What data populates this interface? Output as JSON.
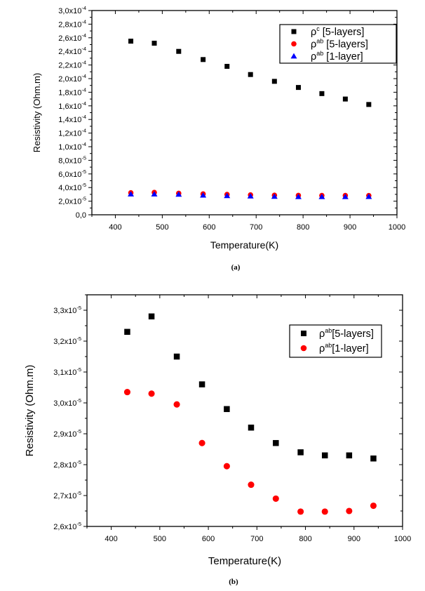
{
  "chart_data": [
    {
      "id": "a",
      "type": "scatter",
      "caption": "(a)",
      "xlabel": "Temperature(K)",
      "ylabel": "Resistivity (Ohm.m)",
      "xlim": [
        350,
        1000
      ],
      "ylim": [
        0,
        0.0003
      ],
      "grid": false,
      "x_ticks": [
        400,
        500,
        600,
        700,
        800,
        900,
        1000
      ],
      "x_tick_labels": [
        "400",
        "500",
        "600",
        "700",
        "800",
        "900",
        "1000"
      ],
      "y_ticks": [
        0,
        2e-05,
        4e-05,
        6e-05,
        8e-05,
        0.0001,
        0.00012,
        0.00014,
        0.00016,
        0.00018,
        0.0002,
        0.00022,
        0.00024,
        0.00026,
        0.00028,
        0.0003
      ],
      "y_tick_labels": [
        {
          "m": "0,0",
          "e": ""
        },
        {
          "m": "2,0x10",
          "e": "-5"
        },
        {
          "m": "4,0x10",
          "e": "-5"
        },
        {
          "m": "6,0x10",
          "e": "-5"
        },
        {
          "m": "8,0x10",
          "e": "-5"
        },
        {
          "m": "1,0x10",
          "e": "-4"
        },
        {
          "m": "1,2x10",
          "e": "-4"
        },
        {
          "m": "1,4x10",
          "e": "-4"
        },
        {
          "m": "1,6x10",
          "e": "-4"
        },
        {
          "m": "1,8x10",
          "e": "-4"
        },
        {
          "m": "2,0x10",
          "e": "-4"
        },
        {
          "m": "2,2x10",
          "e": "-4"
        },
        {
          "m": "2,4x10",
          "e": "-4"
        },
        {
          "m": "2,6x10",
          "e": "-4"
        },
        {
          "m": "2,8x10",
          "e": "-4"
        },
        {
          "m": "3,0x10",
          "e": "-4"
        }
      ],
      "legend_position": "top-right",
      "x": [
        433,
        483,
        535,
        587,
        638,
        688,
        739,
        790,
        840,
        890,
        940
      ],
      "series": [
        {
          "name": "ρ^c [5-layers]",
          "base": "ρ",
          "sup": "c",
          "rest": " [5-layers]",
          "marker": "square",
          "color": "#000000",
          "values": [
            0.000255,
            0.000252,
            0.00024,
            0.000228,
            0.000218,
            0.000206,
            0.000196,
            0.000187,
            0.000178,
            0.00017,
            0.000162
          ]
        },
        {
          "name": "ρ^ab [5-layers]",
          "base": "ρ",
          "sup": "ab",
          "rest": " [5-layers]",
          "marker": "circle",
          "color": "#ff0000",
          "values": [
            3.23e-05,
            3.28e-05,
            3.15e-05,
            3.06e-05,
            2.98e-05,
            2.92e-05,
            2.87e-05,
            2.84e-05,
            2.83e-05,
            2.83e-05,
            2.82e-05
          ]
        },
        {
          "name": "ρ^ab [1-layer]",
          "base": "ρ",
          "sup": "ab",
          "rest": " [1-layer]",
          "marker": "triangle",
          "color": "#0000ff",
          "values": [
            3.035e-05,
            3.03e-05,
            2.995e-05,
            2.87e-05,
            2.795e-05,
            2.735e-05,
            2.69e-05,
            2.648e-05,
            2.648e-05,
            2.65e-05,
            2.667e-05
          ]
        }
      ]
    },
    {
      "id": "b",
      "type": "scatter",
      "caption": "(b)",
      "xlabel": "Temperature(K)",
      "ylabel": "Resistivity (Ohm.m)",
      "xlim": [
        350,
        1000
      ],
      "ylim": [
        2.6e-05,
        3.35e-05
      ],
      "grid": false,
      "x_ticks": [
        400,
        500,
        600,
        700,
        800,
        900,
        1000
      ],
      "x_tick_labels": [
        "400",
        "500",
        "600",
        "700",
        "800",
        "900",
        "1000"
      ],
      "y_ticks": [
        2.6e-05,
        2.7e-05,
        2.8e-05,
        2.9e-05,
        3e-05,
        3.1e-05,
        3.2e-05,
        3.3e-05
      ],
      "y_tick_labels": [
        {
          "m": "2,6x10",
          "e": "-5"
        },
        {
          "m": "2,7x10",
          "e": "-5"
        },
        {
          "m": "2,8x10",
          "e": "-5"
        },
        {
          "m": "2,9x10",
          "e": "-5"
        },
        {
          "m": "3,0x10",
          "e": "-5"
        },
        {
          "m": "3,1x10",
          "e": "-5"
        },
        {
          "m": "3,2x10",
          "e": "-5"
        },
        {
          "m": "3,3x10",
          "e": "-5"
        }
      ],
      "legend_position": "top-right",
      "x": [
        433,
        483,
        535,
        587,
        638,
        688,
        739,
        790,
        840,
        890,
        940
      ],
      "series": [
        {
          "name": "ρ^ab[5-layers]",
          "base": "ρ",
          "sup": "ab",
          "rest": "[5-layers]",
          "marker": "square",
          "color": "#000000",
          "values": [
            3.23e-05,
            3.28e-05,
            3.15e-05,
            3.06e-05,
            2.98e-05,
            2.92e-05,
            2.87e-05,
            2.84e-05,
            2.83e-05,
            2.83e-05,
            2.82e-05
          ]
        },
        {
          "name": "ρ^ab[1-layer]",
          "base": "ρ",
          "sup": "ab",
          "rest": "[1-layer]",
          "marker": "circle",
          "color": "#ff0000",
          "values": [
            3.035e-05,
            3.03e-05,
            2.995e-05,
            2.87e-05,
            2.795e-05,
            2.735e-05,
            2.69e-05,
            2.648e-05,
            2.648e-05,
            2.65e-05,
            2.667e-05
          ]
        }
      ]
    }
  ]
}
